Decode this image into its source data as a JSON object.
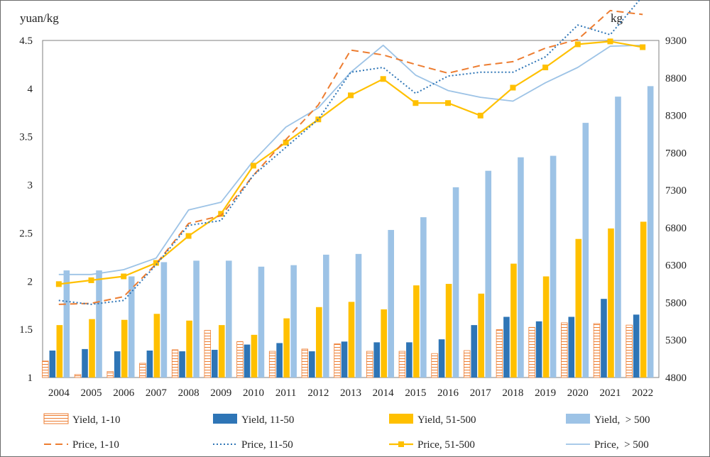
{
  "chart_data": {
    "type": "bar+line",
    "y_left_unit": "yuan/kg",
    "y_right_unit": "kg",
    "ylim_left": [
      1,
      4.5
    ],
    "yticks_left": [
      "1",
      "1.5",
      "2",
      "2.5",
      "3",
      "3.5",
      "4",
      "4.5"
    ],
    "ylim_right": [
      4800,
      9300
    ],
    "yticks_right": [
      "4800",
      "5300",
      "5800",
      "6300",
      "6800",
      "7300",
      "7800",
      "8300",
      "8800",
      "9300"
    ],
    "categories": [
      "2004",
      "2005",
      "2006",
      "2007",
      "2008",
      "2009",
      "2010",
      "2011",
      "2012",
      "2013",
      "2014",
      "2015",
      "2016",
      "2017",
      "2018",
      "2019",
      "2020",
      "2021",
      "2022"
    ],
    "bar_series": [
      {
        "name": "Yield, 1-10",
        "color": "#ED7D31",
        "pattern": "hatched",
        "values": [
          5020,
          4840,
          4880,
          4990,
          5170,
          5430,
          5280,
          5150,
          5180,
          5250,
          5150,
          5150,
          5120,
          5160,
          5440,
          5470,
          5530,
          5520,
          5500
        ]
      },
      {
        "name": "Yield, 11-50",
        "color": "#2E75B6",
        "values": [
          5160,
          5180,
          5150,
          5160,
          5150,
          5170,
          5240,
          5260,
          5150,
          5280,
          5270,
          5270,
          5310,
          5500,
          5610,
          5550,
          5610,
          5850,
          5640
        ]
      },
      {
        "name": "Yield, 51-500",
        "color": "#FFC000",
        "values": [
          5500,
          5580,
          5570,
          5650,
          5560,
          5500,
          5370,
          5590,
          5740,
          5810,
          5710,
          6030,
          6050,
          5920,
          6320,
          6150,
          6650,
          6790,
          6880
        ]
      },
      {
        "name": "Yield,  > 500",
        "color": "#9DC3E6",
        "values": [
          6230,
          6230,
          6150,
          6340,
          6360,
          6360,
          6280,
          6300,
          6440,
          6450,
          6770,
          6940,
          7340,
          7560,
          7740,
          7760,
          8200,
          8550,
          8690
        ]
      }
    ],
    "line_series": [
      {
        "name": "Price, 1-10",
        "color": "#ED7D31",
        "style": "dashed",
        "values": [
          1.76,
          1.77,
          1.84,
          2.18,
          2.6,
          2.68,
          3.1,
          3.47,
          3.83,
          4.4,
          4.35,
          4.25,
          4.16,
          4.24,
          4.28,
          4.42,
          4.51,
          4.81,
          4.77
        ]
      },
      {
        "name": "Price, 11-50",
        "color": "#2E75B6",
        "style": "dotted",
        "values": [
          1.8,
          1.76,
          1.8,
          2.17,
          2.58,
          2.63,
          3.1,
          3.39,
          3.68,
          4.17,
          4.22,
          3.95,
          4.13,
          4.17,
          4.17,
          4.33,
          4.66,
          4.56,
          4.96
        ]
      },
      {
        "name": "Price, 51-500",
        "color": "#FFC000",
        "style": "solid-square",
        "values": [
          1.97,
          2.01,
          2.05,
          2.19,
          2.47,
          2.7,
          3.2,
          3.44,
          3.68,
          3.93,
          4.1,
          3.85,
          3.85,
          3.72,
          4.01,
          4.22,
          4.46,
          4.49,
          4.43
        ]
      },
      {
        "name": "Price,  > 500",
        "color": "#9DC3E6",
        "style": "solid",
        "values": [
          2.07,
          2.07,
          2.12,
          2.24,
          2.74,
          2.82,
          3.25,
          3.6,
          3.8,
          4.17,
          4.45,
          4.14,
          3.98,
          3.91,
          3.87,
          4.06,
          4.22,
          4.44,
          4.45
        ]
      }
    ]
  }
}
